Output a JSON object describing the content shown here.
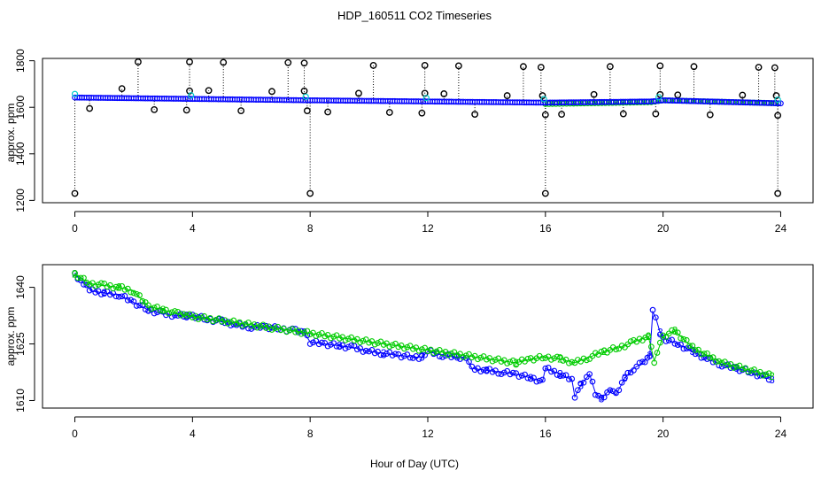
{
  "chart_data": [
    {
      "type": "scatter",
      "title": "HDP_160511  CO2 Timeseries",
      "xlabel": "",
      "ylabel": "approx. ppm",
      "xlim": [
        -1.1,
        25.1
      ],
      "ylim": [
        1190,
        1810
      ],
      "x_ticks": [
        0,
        4,
        8,
        12,
        16,
        20,
        24
      ],
      "y_ticks": [
        1200,
        1400,
        1600,
        1800
      ],
      "colors": {
        "raw": "#000000",
        "series2": "#00cc00",
        "series3": "#0000ff",
        "series1": "#00cccc"
      },
      "spikes": [
        {
          "x": 0.0,
          "y": 1230
        },
        {
          "x": 0.5,
          "y": 1595
        },
        {
          "x": 1.6,
          "y": 1680
        },
        {
          "x": 2.15,
          "y": 1795
        },
        {
          "x": 2.7,
          "y": 1590
        },
        {
          "x": 3.8,
          "y": 1588
        },
        {
          "x": 3.9,
          "y": 1795
        },
        {
          "x": 3.9,
          "y": 1670
        },
        {
          "x": 4.55,
          "y": 1672
        },
        {
          "x": 5.05,
          "y": 1793
        },
        {
          "x": 5.65,
          "y": 1585
        },
        {
          "x": 6.7,
          "y": 1668
        },
        {
          "x": 7.25,
          "y": 1792
        },
        {
          "x": 7.8,
          "y": 1790
        },
        {
          "x": 7.8,
          "y": 1670
        },
        {
          "x": 7.9,
          "y": 1585
        },
        {
          "x": 8.0,
          "y": 1230
        },
        {
          "x": 8.6,
          "y": 1580
        },
        {
          "x": 9.65,
          "y": 1660
        },
        {
          "x": 10.15,
          "y": 1780
        },
        {
          "x": 10.7,
          "y": 1578
        },
        {
          "x": 11.8,
          "y": 1575
        },
        {
          "x": 11.9,
          "y": 1780
        },
        {
          "x": 11.9,
          "y": 1660
        },
        {
          "x": 12.55,
          "y": 1658
        },
        {
          "x": 13.05,
          "y": 1778
        },
        {
          "x": 13.6,
          "y": 1570
        },
        {
          "x": 14.7,
          "y": 1650
        },
        {
          "x": 15.25,
          "y": 1775
        },
        {
          "x": 15.85,
          "y": 1772
        },
        {
          "x": 15.9,
          "y": 1650
        },
        {
          "x": 16.0,
          "y": 1568
        },
        {
          "x": 16.0,
          "y": 1230
        },
        {
          "x": 16.55,
          "y": 1570
        },
        {
          "x": 17.65,
          "y": 1655
        },
        {
          "x": 18.2,
          "y": 1775
        },
        {
          "x": 18.65,
          "y": 1572
        },
        {
          "x": 19.75,
          "y": 1572
        },
        {
          "x": 19.9,
          "y": 1778
        },
        {
          "x": 19.9,
          "y": 1655
        },
        {
          "x": 20.5,
          "y": 1653
        },
        {
          "x": 21.05,
          "y": 1775
        },
        {
          "x": 21.6,
          "y": 1568
        },
        {
          "x": 22.7,
          "y": 1652
        },
        {
          "x": 23.25,
          "y": 1772
        },
        {
          "x": 23.8,
          "y": 1770
        },
        {
          "x": 23.85,
          "y": 1650
        },
        {
          "x": 23.9,
          "y": 1565
        },
        {
          "x": 23.9,
          "y": 1230
        }
      ],
      "series3_points": [
        [
          0.0,
          1642
        ],
        [
          4.0,
          1636
        ],
        [
          8.0,
          1630
        ],
        [
          12.0,
          1625
        ],
        [
          16.0,
          1620
        ],
        [
          19.6,
          1625
        ],
        [
          20.0,
          1630
        ],
        [
          24.0,
          1617
        ]
      ],
      "series2_points": [
        [
          16.0,
          1614
        ],
        [
          19.6,
          1622
        ],
        [
          20.0,
          1630
        ],
        [
          24.0,
          1617
        ]
      ]
    },
    {
      "type": "scatter",
      "title": "",
      "xlabel": "Hour of Day (UTC)",
      "ylabel": "approx. ppm",
      "xlim": [
        -1.1,
        25.1
      ],
      "ylim": [
        1608,
        1646
      ],
      "x_ticks": [
        0,
        4,
        8,
        12,
        16,
        20,
        24
      ],
      "y_ticks": [
        1610,
        1625,
        1640
      ],
      "colors": {
        "series2": "#00cc00",
        "series3": "#0000ff"
      },
      "series": [
        {
          "code": "3",
          "points": [
            [
              0.0,
              1643.5
            ],
            [
              0.3,
              1641
            ],
            [
              0.6,
              1639
            ],
            [
              1.0,
              1638.5
            ],
            [
              1.5,
              1638
            ],
            [
              2.0,
              1636
            ],
            [
              2.5,
              1634
            ],
            [
              3.0,
              1633
            ],
            [
              3.5,
              1632.5
            ],
            [
              3.8,
              1632.5
            ],
            [
              4.0,
              1632.5
            ],
            [
              4.5,
              1631.5
            ],
            [
              5.0,
              1631
            ],
            [
              5.5,
              1630
            ],
            [
              6.0,
              1629.5
            ],
            [
              6.5,
              1629.5
            ],
            [
              7.0,
              1629
            ],
            [
              7.5,
              1628.5
            ],
            [
              7.8,
              1628
            ],
            [
              8.0,
              1625.5
            ],
            [
              8.5,
              1625
            ],
            [
              9.0,
              1624.5
            ],
            [
              9.5,
              1624
            ],
            [
              10.0,
              1623
            ],
            [
              10.5,
              1622.5
            ],
            [
              11.0,
              1622
            ],
            [
              11.5,
              1621.5
            ],
            [
              11.8,
              1621.5
            ],
            [
              12.0,
              1623
            ],
            [
              12.5,
              1622
            ],
            [
              13.0,
              1621.5
            ],
            [
              13.3,
              1621.5
            ],
            [
              13.5,
              1618.5
            ],
            [
              14.0,
              1618
            ],
            [
              14.5,
              1617.5
            ],
            [
              15.0,
              1617
            ],
            [
              15.5,
              1616
            ],
            [
              15.9,
              1615
            ],
            [
              16.0,
              1618.5
            ],
            [
              16.5,
              1617
            ],
            [
              16.9,
              1615.5
            ],
            [
              17.0,
              1611
            ],
            [
              17.2,
              1614
            ],
            [
              17.5,
              1617
            ],
            [
              17.7,
              1612
            ],
            [
              17.9,
              1610.5
            ],
            [
              18.2,
              1613
            ],
            [
              18.4,
              1611.5
            ],
            [
              18.7,
              1616
            ],
            [
              19.0,
              1618.5
            ],
            [
              19.3,
              1620
            ],
            [
              19.55,
              1622
            ],
            [
              19.65,
              1633.5
            ],
            [
              19.75,
              1632
            ],
            [
              19.9,
              1628
            ],
            [
              20.0,
              1626.5
            ],
            [
              20.5,
              1625
            ],
            [
              21.0,
              1623
            ],
            [
              21.5,
              1621
            ],
            [
              22.0,
              1619.5
            ],
            [
              22.5,
              1618.5
            ],
            [
              23.0,
              1617.5
            ],
            [
              23.5,
              1616
            ],
            [
              23.7,
              1615.5
            ]
          ]
        },
        {
          "code": "2",
          "points": [
            [
              0.0,
              1643.5
            ],
            [
              0.5,
              1641
            ],
            [
              1.0,
              1640.5
            ],
            [
              1.5,
              1640
            ],
            [
              2.0,
              1639
            ],
            [
              2.5,
              1635
            ],
            [
              3.0,
              1634
            ],
            [
              3.5,
              1633
            ],
            [
              3.8,
              1632.5
            ],
            [
              15.0,
              1620
            ],
            [
              15.5,
              1621
            ],
            [
              16.0,
              1621.5
            ],
            [
              16.5,
              1621
            ],
            [
              17.0,
              1620
            ],
            [
              17.5,
              1621.5
            ],
            [
              18.0,
              1623
            ],
            [
              18.5,
              1624
            ],
            [
              19.0,
              1625.5
            ],
            [
              19.5,
              1627
            ],
            [
              19.7,
              1620.5
            ],
            [
              20.0,
              1627
            ],
            [
              20.4,
              1628.5
            ],
            [
              21.0,
              1624
            ],
            [
              22.0,
              1620
            ],
            [
              23.7,
              1616.5
            ]
          ]
        }
      ]
    }
  ]
}
